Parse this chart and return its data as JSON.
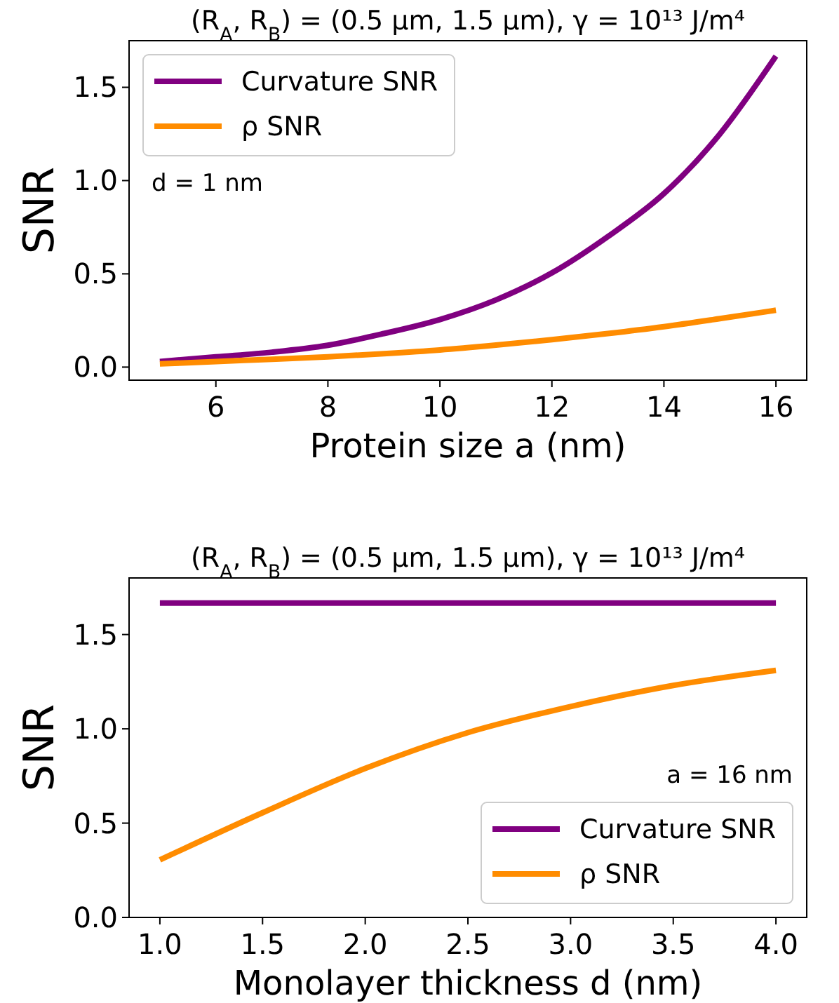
{
  "chart_data": [
    {
      "type": "line",
      "title": "(R$_{A}$, R$_{B}$) = (0.5 μm, 1.5 μm), γ = 10¹³ J/m⁴",
      "xlabel": "Protein size a (nm)",
      "ylabel": "SNR",
      "annotations": [
        "d = 1 nm"
      ],
      "xlim": [
        4.45,
        16.55
      ],
      "xticks": [
        6,
        8,
        10,
        12,
        14,
        16
      ],
      "ylim": [
        -0.07,
        1.75
      ],
      "yticks": [
        {
          "value": 0,
          "label": "0.0"
        },
        {
          "value": 0.5,
          "label": "0.5"
        },
        {
          "value": 1.0,
          "label": "1.0"
        },
        {
          "value": 1.5,
          "label": "1.5"
        }
      ],
      "x": [
        5,
        6,
        7,
        8,
        9,
        10,
        11,
        12,
        13,
        14,
        15,
        16
      ],
      "series": [
        {
          "name": "Curvature SNR",
          "color": "#800080",
          "values": [
            0.03,
            0.055,
            0.08,
            0.117,
            0.18,
            0.255,
            0.36,
            0.505,
            0.7,
            0.93,
            1.25,
            1.667
          ]
        },
        {
          "name": "ρ SNR",
          "color": "#ff8c00",
          "values": [
            0.017,
            0.03,
            0.042,
            0.055,
            0.072,
            0.092,
            0.118,
            0.147,
            0.18,
            0.217,
            0.26,
            0.305
          ]
        }
      ],
      "legend": "top left",
      "grid": false,
      "line_style": "solid",
      "marker": "none"
    },
    {
      "type": "line",
      "title": "(R$_{A}$, R$_{B}$) = (0.5 μm, 1.5 μm), γ = 10¹³ J/m⁴",
      "xlabel": "Monolayer thickness d (nm)",
      "ylabel": "SNR",
      "annotations": [
        "a = 16 nm"
      ],
      "xlim": [
        0.85,
        4.15
      ],
      "xticks": [
        {
          "value": 1,
          "label": "1.0"
        },
        {
          "value": 1.5,
          "label": "1.5"
        },
        {
          "value": 2,
          "label": "2.0"
        },
        {
          "value": 2.5,
          "label": "2.5"
        },
        {
          "value": 3,
          "label": "3.0"
        },
        {
          "value": 3.5,
          "label": "3.5"
        },
        {
          "value": 4,
          "label": "4.0"
        }
      ],
      "ylim": [
        0,
        1.8
      ],
      "yticks": [
        {
          "value": 0,
          "label": "0.0"
        },
        {
          "value": 0.5,
          "label": "0.5"
        },
        {
          "value": 1.0,
          "label": "1.0"
        },
        {
          "value": 1.5,
          "label": "1.5"
        }
      ],
      "x": [
        1,
        1.5,
        2,
        2.5,
        3,
        3.5,
        4
      ],
      "series": [
        {
          "name": "Curvature SNR",
          "color": "#800080",
          "values": [
            1.667,
            1.667,
            1.667,
            1.667,
            1.667,
            1.667,
            1.667
          ]
        },
        {
          "name": "ρ SNR",
          "color": "#ff8c00",
          "values": [
            0.305,
            0.555,
            0.79,
            0.98,
            1.118,
            1.23,
            1.31
          ]
        }
      ],
      "legend": "bottom right",
      "grid": false,
      "line_style": "solid",
      "marker": "none"
    }
  ]
}
